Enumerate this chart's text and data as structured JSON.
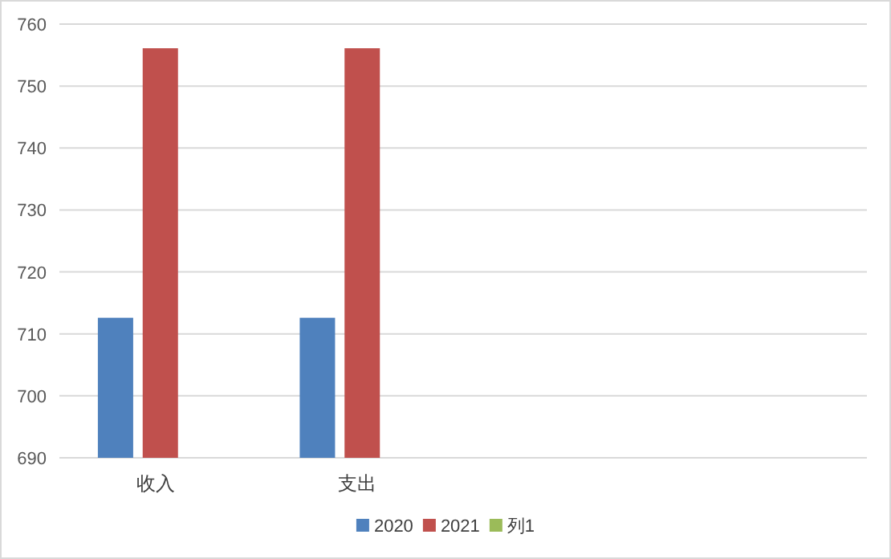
{
  "chart_data": {
    "type": "bar",
    "categories": [
      "收入",
      "支出",
      null,
      null
    ],
    "series": [
      {
        "name": "2020",
        "color": "#4f81bd",
        "values": [
          712.6,
          712.6,
          null,
          null
        ]
      },
      {
        "name": "2021",
        "color": "#c0504d",
        "values": [
          756.1,
          756.1,
          null,
          null
        ]
      },
      {
        "name": "列1",
        "color": "#9bbb59",
        "values": [
          null,
          null,
          null,
          null
        ]
      }
    ],
    "ylim": [
      690,
      760
    ],
    "yticks": [
      690,
      700,
      710,
      720,
      730,
      740,
      750,
      760
    ],
    "grid": "y",
    "legend": "bottom"
  }
}
